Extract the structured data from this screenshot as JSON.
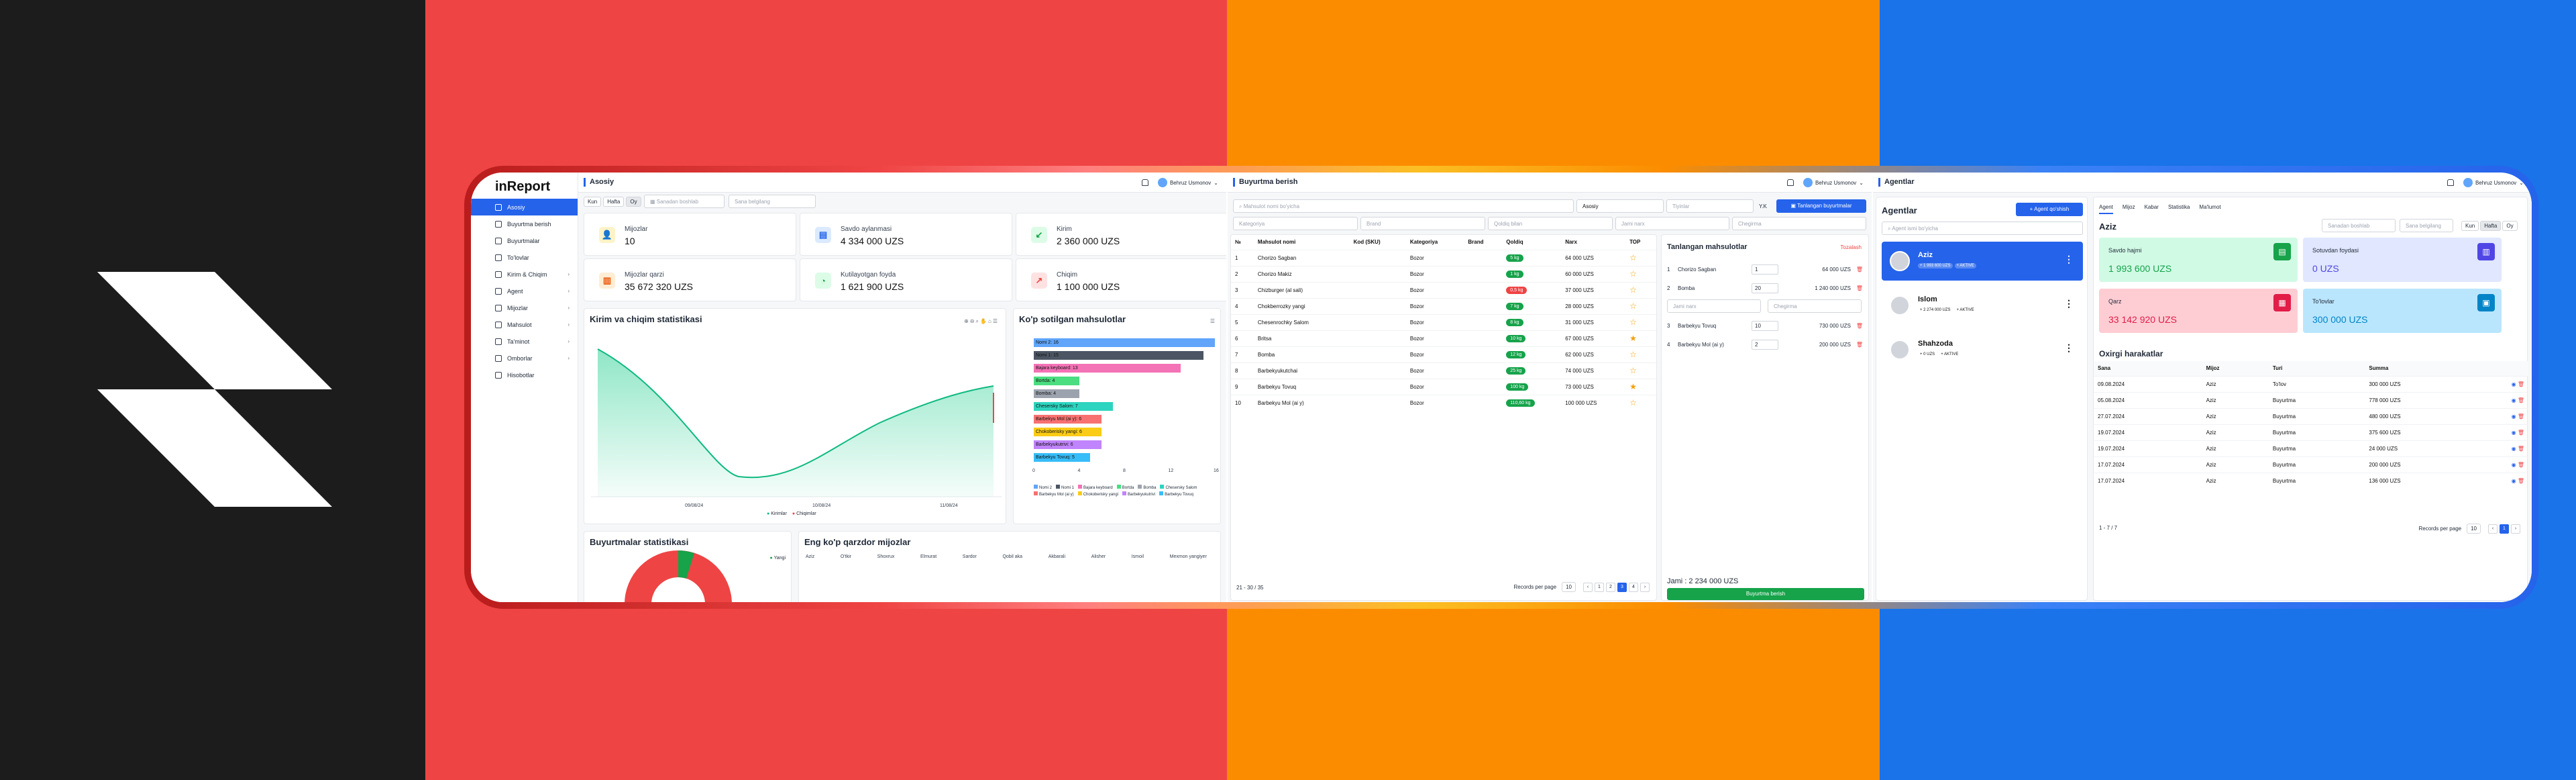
{
  "colors": {
    "black": "#1c1c1c",
    "red": "#ef4444",
    "orange": "#fb8c00",
    "blue": "#1a73e8",
    "accent": "#2563eb",
    "green": "#16a34a"
  },
  "s1": {
    "brand": "inReport",
    "title": "Asosiy",
    "user": "Behruz Usmonov",
    "nav": [
      {
        "label": "Asosiy",
        "icon": "home-icon"
      },
      {
        "label": "Buyurtma berish",
        "icon": "cart-icon"
      },
      {
        "label": "Buyurtmalar",
        "icon": "list-icon"
      },
      {
        "label": "To'lovlar",
        "icon": "wallet-icon"
      },
      {
        "label": "Kirim & Chiqim",
        "icon": "transfer-icon"
      },
      {
        "label": "Agent",
        "icon": "user-icon"
      },
      {
        "label": "Mijozlar",
        "icon": "users-icon"
      },
      {
        "label": "Mahsulot",
        "icon": "box-icon"
      },
      {
        "label": "Ta'minot",
        "icon": "truck-icon"
      },
      {
        "label": "Omborlar",
        "icon": "warehouse-icon"
      },
      {
        "label": "Hisobotlar",
        "icon": "report-icon"
      }
    ],
    "filters": {
      "kun": "Kun",
      "hafta": "Hafta",
      "oy": "Oy",
      "from": "Sanadan boshlab",
      "to": "Sana belgilang"
    },
    "stats": [
      {
        "label": "Mijozlar",
        "value": "10",
        "icon": "users-icon",
        "color": "#f59e0b",
        "bg": "#fef3c7",
        "glyph": "👤"
      },
      {
        "label": "Savdo aylanmasi",
        "value": "4 334 000 UZS",
        "icon": "coins-icon",
        "color": "#2563eb",
        "bg": "#dbeafe",
        "glyph": "▤"
      },
      {
        "label": "Kirim",
        "value": "2 360 000 UZS",
        "icon": "income-icon",
        "color": "#16a34a",
        "bg": "#dcfce7",
        "glyph": "↙"
      },
      {
        "label": "Mijozlar qarzi",
        "value": "35 672 320 UZS",
        "icon": "debt-icon",
        "color": "#ea580c",
        "bg": "#ffedd5",
        "glyph": "▥"
      },
      {
        "label": "Kutilayotgan foyda",
        "value": "1 621 900 UZS",
        "icon": "profit-icon",
        "color": "#16a34a",
        "bg": "#dcfce7",
        "glyph": "◔"
      },
      {
        "label": "Chiqim",
        "value": "1 100 000 UZS",
        "icon": "expense-icon",
        "color": "#ef4444",
        "bg": "#fee2e2",
        "glyph": "↗"
      }
    ],
    "chart1_title": "Kirim va chiqim statistikasi",
    "chart1_ticks": [
      "09/08/24",
      "10/08/24",
      "11/08/24"
    ],
    "chart1_legend": [
      "Kirimlar",
      "Chiqimlar"
    ],
    "chart2_title": "Ko'p sotilgan mahsulotlar",
    "chart2_axis": [
      "0",
      "4",
      "8",
      "12",
      "16"
    ],
    "chart3_title": "Buyurtmalar statistikasi",
    "chart3_legend": "Yangi",
    "table_title": "Eng ko'p qarzdor mijozlar",
    "table_heads": [
      "Aziz",
      "O'tkir",
      "Shoxrux",
      "Elmurat",
      "Sardor",
      "Qobil aka",
      "Akbarali",
      "Alisher",
      "Ismoil",
      "Mexmon yangiyer"
    ]
  },
  "chart_data": {
    "type": "bar",
    "title": "Ko'p sotilgan mahsulotlar",
    "categories": [
      "Nomi 2",
      "Nomi 1",
      "Bajara keyboard",
      "Bortda",
      "Bomba",
      "Chesersky Salom",
      "Barbekyu Mol (ai y)",
      "Chokoberisky yangi",
      "Barbekyukutrivi",
      "Barbekyu Tovuq"
    ],
    "values": [
      16,
      15,
      13,
      4,
      4,
      7,
      6,
      6,
      6,
      5
    ],
    "colors": [
      "#60a5fa",
      "#4b5563",
      "#f472b6",
      "#4ade80",
      "#9ca3af",
      "#2dd4bf",
      "#f87171",
      "#facc15",
      "#c084fc",
      "#38bdf8"
    ],
    "xlim": [
      0,
      16
    ]
  },
  "s2": {
    "title": "Buyurtma berish",
    "user": "Behruz Usmonov",
    "search": "Mahsulot nomi bo'yicha",
    "client_sel": "Asosiy",
    "price_sel": "Tiyinlar",
    "currency": "Y.K",
    "ord_btn": "Tanlangan buyurtmalar",
    "f1": "Kategoriya",
    "f2": "Brand",
    "f3": "Qoldiq bilan",
    "heads": [
      "№",
      "Mahsulot nomi",
      "Kod (SKU)",
      "Kategoriya",
      "Brand",
      "Qoldiq",
      "Narx",
      "TOP"
    ],
    "rows": [
      {
        "n": "1",
        "name": "Chorizo Sagban",
        "cat": "Bozor",
        "q": "5 kg",
        "qc": "#16a34a",
        "price": "64 000 UZS",
        "top": "☆"
      },
      {
        "n": "2",
        "name": "Chorizo Makiz",
        "cat": "Bozor",
        "q": "1 kg",
        "qc": "#16a34a",
        "price": "60 000 UZS",
        "top": "☆"
      },
      {
        "n": "3",
        "name": "Chizburger (al sali)",
        "cat": "Bozor",
        "q": "0,5 kg",
        "qc": "#ef4444",
        "price": "37 000 UZS",
        "top": "☆"
      },
      {
        "n": "4",
        "name": "Chokberrozky yangi",
        "cat": "Bozor",
        "q": "7 kg",
        "qc": "#16a34a",
        "price": "28 000 UZS",
        "top": "☆"
      },
      {
        "n": "5",
        "name": "Chesenrochky Salom",
        "cat": "Bozor",
        "q": "8 kg",
        "qc": "#16a34a",
        "price": "31 000 UZS",
        "top": "☆"
      },
      {
        "n": "6",
        "name": "Britsa",
        "cat": "Bozor",
        "q": "10 kg",
        "qc": "#16a34a",
        "price": "67 000 UZS",
        "top": "★"
      },
      {
        "n": "7",
        "name": "Bomba",
        "cat": "Bozor",
        "q": "12 kg",
        "qc": "#16a34a",
        "price": "62 000 UZS",
        "top": "☆"
      },
      {
        "n": "8",
        "name": "Barbekyukutchai",
        "cat": "Bozor",
        "q": "25 kg",
        "qc": "#16a34a",
        "price": "74 000 UZS",
        "top": "☆"
      },
      {
        "n": "9",
        "name": "Barbekyu Tovuq",
        "cat": "Bozor",
        "q": "100 kg",
        "qc": "#16a34a",
        "price": "73 000 UZS",
        "top": "★"
      },
      {
        "n": "10",
        "name": "Barbekyu Mol (ai y)",
        "cat": "Bozor",
        "q": "110,60 kg",
        "qc": "#16a34a",
        "price": "100 000 UZS",
        "top": "☆"
      }
    ],
    "records": "21 - 30 / 35",
    "per_page_label": "Records per page",
    "per_page": "10",
    "pages": [
      "‹",
      "1",
      "2",
      "3",
      "4",
      "›"
    ],
    "sel_title": "Tanlangan mahsulotlar",
    "sel_clear": "Tozalash",
    "sel": [
      {
        "n": "1",
        "name": "Chorizo Sagban",
        "qty": "1",
        "price": "64 000 UZS"
      },
      {
        "n": "2",
        "name": "Bomba",
        "qty": "20",
        "price": "1 240 000 UZS"
      },
      {
        "n": "3",
        "name": "Barbekyu Tovuq",
        "qty": "10",
        "price": "730 000 UZS"
      },
      {
        "n": "4",
        "name": "Barbekyu Mol (ai y)",
        "qty": "2",
        "price": "200 000 UZS"
      }
    ],
    "row_inputs": [
      "Jami narx",
      "Chegirma"
    ],
    "total": "Jami : 2 234 000 UZS",
    "submit": "Buyurtma berish"
  },
  "s3": {
    "title": "Agentlar",
    "user": "Behruz Usmonov",
    "list_title": "Agentlar",
    "add_btn": "Agent qo'shish",
    "search": "Agent ismi bo'yicha",
    "agents": [
      {
        "name": "Aziz",
        "m1": "+ 1 993 600 UZS",
        "m2": "+ AKTIVE",
        "sel": "yes"
      },
      {
        "name": "Islom",
        "m1": "+ 2 274 000 UZS",
        "m2": "+ AKTIVE",
        "sel": "no"
      },
      {
        "name": "Shahzoda",
        "m1": "+ 0 UZS",
        "m2": "+ AKTIVE",
        "sel": "no"
      }
    ],
    "tabs": [
      "Agent",
      "Mijoz",
      "Kabar",
      "Statistika",
      "Ma'lumot"
    ],
    "agent": "Aziz",
    "f_from": "Sanadan boshlab",
    "f_to": "Sana belgilang",
    "kun": "Kun",
    "hafta": "Hafta",
    "oy": "Oy",
    "tiles": [
      {
        "label": "Savdo hajmi",
        "value": "1 993 600 UZS",
        "bg": "#d1fae5",
        "ic": "#16a34a",
        "icon": "bag-icon"
      },
      {
        "label": "Sotuvdan foydasi",
        "value": "0 UZS",
        "bg": "#e0e7ff",
        "ic": "#4f46e5",
        "icon": "chart-icon"
      },
      {
        "label": "Qarz",
        "value": "33 142 920 UZS",
        "bg": "#fecdd3",
        "ic": "#e11d48",
        "icon": "debt-icon"
      },
      {
        "label": "To'lovlar",
        "value": "300 000 UZS",
        "bg": "#bae6fd",
        "ic": "#0284c7",
        "icon": "wallet-icon"
      }
    ],
    "mov_title": "Oxirgi harakatlar",
    "mov_heads": [
      "Sana",
      "Mijoz",
      "Turi",
      "Summa"
    ],
    "mov": [
      {
        "d": "09.08.2024",
        "c": "Aziz",
        "t": "To'lov",
        "s": "300 000 UZS"
      },
      {
        "d": "05.08.2024",
        "c": "Aziz",
        "t": "Buyurtma",
        "s": "778 000 UZS"
      },
      {
        "d": "27.07.2024",
        "c": "Aziz",
        "t": "Buyurtma",
        "s": "480 000 UZS"
      },
      {
        "d": "19.07.2024",
        "c": "Aziz",
        "t": "Buyurtma",
        "s": "375 600 UZS"
      },
      {
        "d": "19.07.2024",
        "c": "Aziz",
        "t": "Buyurtma",
        "s": "24 000 UZS"
      },
      {
        "d": "17.07.2024",
        "c": "Aziz",
        "t": "Buyurtma",
        "s": "200 000 UZS"
      },
      {
        "d": "17.07.2024",
        "c": "Aziz",
        "t": "Buyurtma",
        "s": "136 000 UZS"
      }
    ],
    "mov_pages": "1 - 7 / 7",
    "per_page_label": "Records per page",
    "per_page": "10",
    "page": "1"
  }
}
